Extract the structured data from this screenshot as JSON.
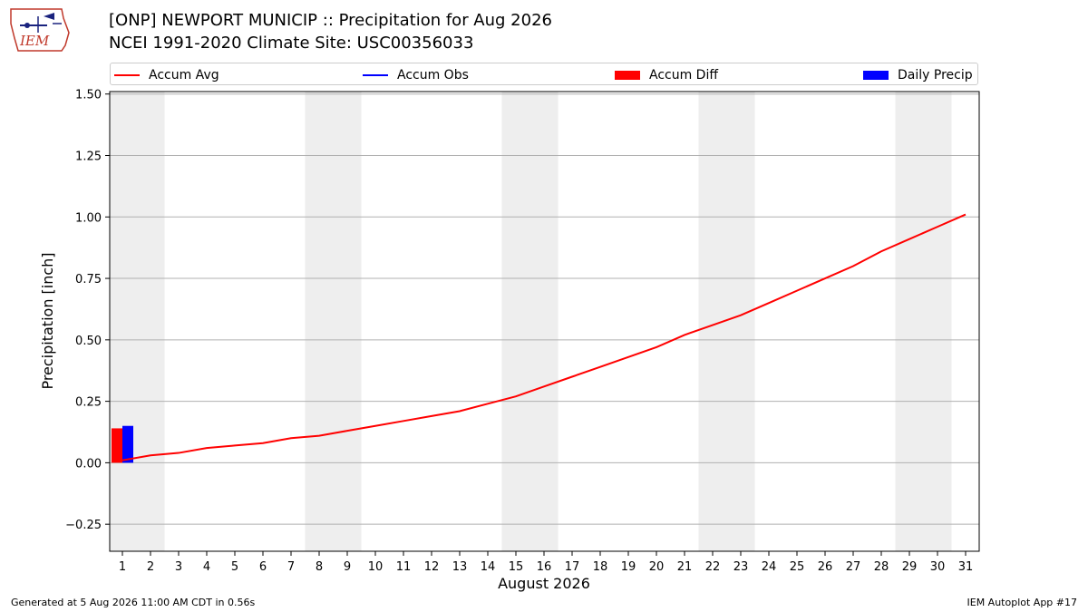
{
  "header": {
    "logo_text": "IEM",
    "title_line1": "[ONP] NEWPORT MUNICIP :: Precipitation for Aug 2026",
    "title_line2": "NCEI 1991-2020 Climate Site: USC00356033"
  },
  "legend": {
    "items": [
      {
        "label": "Accum Avg",
        "kind": "line",
        "color": "#ff0000"
      },
      {
        "label": "Accum Obs",
        "kind": "line",
        "color": "#0000ff"
      },
      {
        "label": "Accum Diff",
        "kind": "bar",
        "color": "#ff0000"
      },
      {
        "label": "Daily Precip",
        "kind": "bar",
        "color": "#0000ff"
      }
    ]
  },
  "chart_data": {
    "type": "line",
    "xlabel": "August 2026",
    "ylabel": "Precipitation [inch]",
    "x": [
      1,
      2,
      3,
      4,
      5,
      6,
      7,
      8,
      9,
      10,
      11,
      12,
      13,
      14,
      15,
      16,
      17,
      18,
      19,
      20,
      21,
      22,
      23,
      24,
      25,
      26,
      27,
      28,
      29,
      30,
      31
    ],
    "ylim": [
      -0.36,
      1.51
    ],
    "yticks": [
      -0.25,
      0.0,
      0.25,
      0.5,
      0.75,
      1.0,
      1.25,
      1.5
    ],
    "ytick_labels": [
      "−0.25",
      "0.00",
      "0.25",
      "0.50",
      "0.75",
      "1.00",
      "1.25",
      "1.50"
    ],
    "grid": "y",
    "weekend_shading": [
      [
        1,
        2
      ],
      [
        8,
        9
      ],
      [
        15,
        16
      ],
      [
        22,
        23
      ],
      [
        29,
        30
      ]
    ],
    "series": [
      {
        "name": "Accum Avg",
        "type": "line",
        "color": "#ff0000",
        "values": [
          0.01,
          0.03,
          0.04,
          0.06,
          0.07,
          0.08,
          0.1,
          0.11,
          0.13,
          0.15,
          0.17,
          0.19,
          0.21,
          0.24,
          0.27,
          0.31,
          0.35,
          0.39,
          0.43,
          0.47,
          0.52,
          0.56,
          0.6,
          0.65,
          0.7,
          0.75,
          0.8,
          0.86,
          0.91,
          0.96,
          1.01
        ]
      },
      {
        "name": "Accum Diff",
        "type": "bar",
        "color": "#ff0000",
        "x": [
          1
        ],
        "values": [
          0.14
        ]
      },
      {
        "name": "Daily Precip",
        "type": "bar",
        "color": "#0000ff",
        "x": [
          1
        ],
        "values": [
          0.15
        ]
      }
    ]
  },
  "footer": {
    "left": "Generated at 5 Aug 2026 11:00 AM CDT in 0.56s",
    "right": "IEM Autoplot App #17"
  }
}
